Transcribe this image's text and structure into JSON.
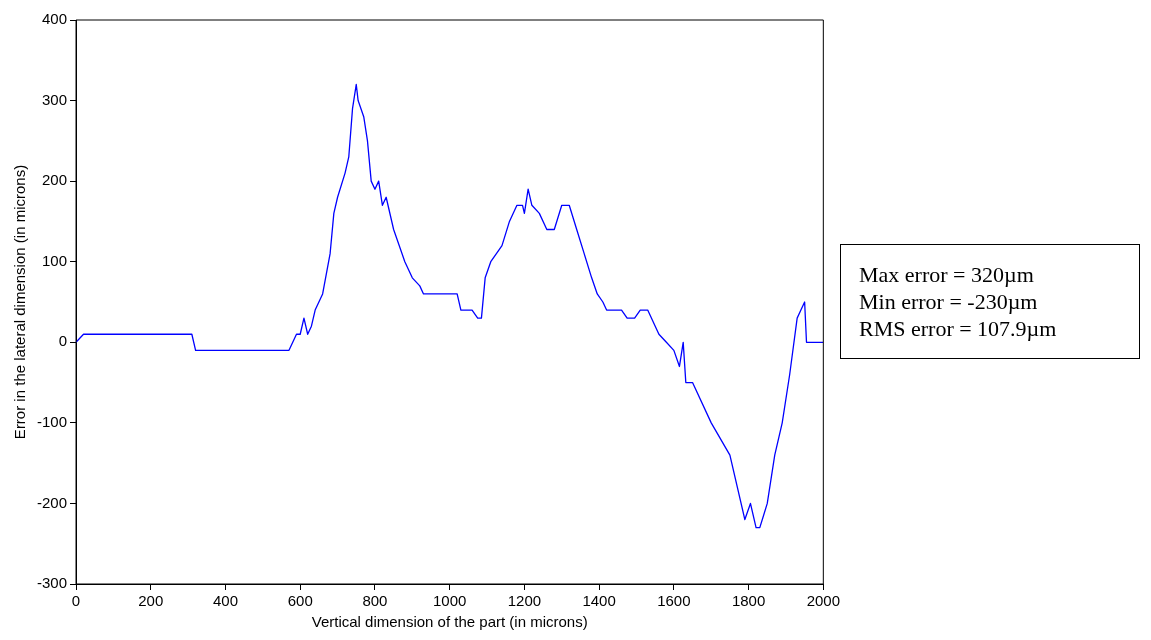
{
  "chart_data": {
    "type": "line",
    "xlabel": "Vertical dimension of the part (in microns)",
    "ylabel": "Error in the lateral dimension (in microns)",
    "xlim": [
      0,
      2000
    ],
    "xticks": [
      0,
      200,
      400,
      600,
      800,
      1000,
      1200,
      1400,
      1600,
      1800,
      2000
    ],
    "ylim": [
      -300,
      400
    ],
    "yticks": [
      -300,
      -200,
      -100,
      0,
      100,
      200,
      300,
      400
    ],
    "grid": false,
    "legend": false,
    "annotations": [
      "Max error = 320µm",
      "Min error = -230µm",
      "RMS error = 107.9µm"
    ],
    "series": [
      {
        "color": "#0000ff",
        "x": [
          0,
          20,
          310,
          320,
          570,
          590,
          600,
          610,
          620,
          630,
          640,
          660,
          680,
          690,
          700,
          720,
          730,
          740,
          750,
          755,
          770,
          780,
          790,
          800,
          810,
          820,
          830,
          850,
          880,
          900,
          920,
          930,
          1020,
          1030,
          1060,
          1075,
          1085,
          1095,
          1110,
          1140,
          1160,
          1180,
          1195,
          1200,
          1210,
          1220,
          1240,
          1260,
          1280,
          1300,
          1320,
          1340,
          1360,
          1380,
          1395,
          1410,
          1420,
          1460,
          1475,
          1495,
          1510,
          1530,
          1560,
          1580,
          1600,
          1615,
          1625,
          1632,
          1650,
          1700,
          1750,
          1770,
          1790,
          1805,
          1820,
          1830,
          1850,
          1870,
          1890,
          1910,
          1930,
          1940,
          1950,
          1955,
          2000
        ],
        "values": [
          0,
          10,
          10,
          -10,
          -10,
          10,
          10,
          30,
          10,
          20,
          40,
          60,
          110,
          160,
          180,
          210,
          230,
          290,
          320,
          300,
          280,
          250,
          200,
          190,
          200,
          170,
          180,
          140,
          100,
          80,
          70,
          60,
          60,
          40,
          40,
          30,
          30,
          80,
          100,
          120,
          150,
          170,
          170,
          160,
          190,
          170,
          160,
          140,
          140,
          170,
          170,
          140,
          110,
          80,
          60,
          50,
          40,
          40,
          30,
          30,
          40,
          40,
          10,
          0,
          -10,
          -30,
          0,
          -50,
          -50,
          -100,
          -140,
          -180,
          -220,
          -200,
          -230,
          -230,
          -200,
          -140,
          -100,
          -40,
          30,
          40,
          50,
          0,
          0
        ]
      }
    ]
  }
}
